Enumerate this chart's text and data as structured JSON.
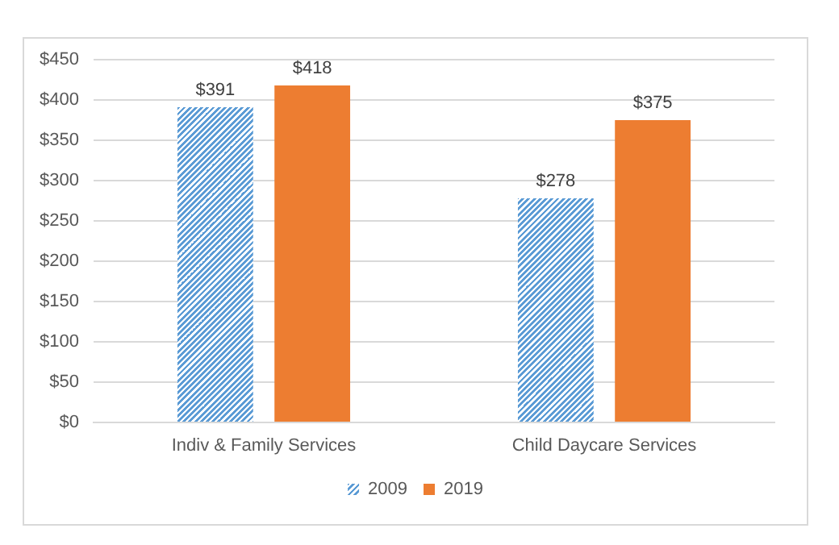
{
  "chart_data": {
    "type": "bar",
    "categories": [
      "Indiv & Family Services",
      "Child Daycare Services"
    ],
    "series": [
      {
        "name": "2009",
        "color": "#5b9bd5",
        "values": [
          391,
          278
        ],
        "value_labels": [
          "$391",
          "$278"
        ]
      },
      {
        "name": "2019",
        "color": "#ed7d31",
        "values": [
          418,
          375
        ],
        "value_labels": [
          "$418",
          "$375"
        ]
      }
    ],
    "ylim": [
      0,
      450
    ],
    "yticks": [
      {
        "value": 0,
        "label": "$0"
      },
      {
        "value": 50,
        "label": "$50"
      },
      {
        "value": 100,
        "label": "$100"
      },
      {
        "value": 150,
        "label": "$150"
      },
      {
        "value": 200,
        "label": "$200"
      },
      {
        "value": 250,
        "label": "$250"
      },
      {
        "value": 300,
        "label": "$300"
      },
      {
        "value": 350,
        "label": "$350"
      },
      {
        "value": 400,
        "label": "$400"
      },
      {
        "value": 450,
        "label": "$450"
      }
    ],
    "grid": "y",
    "legend": "bottom"
  }
}
